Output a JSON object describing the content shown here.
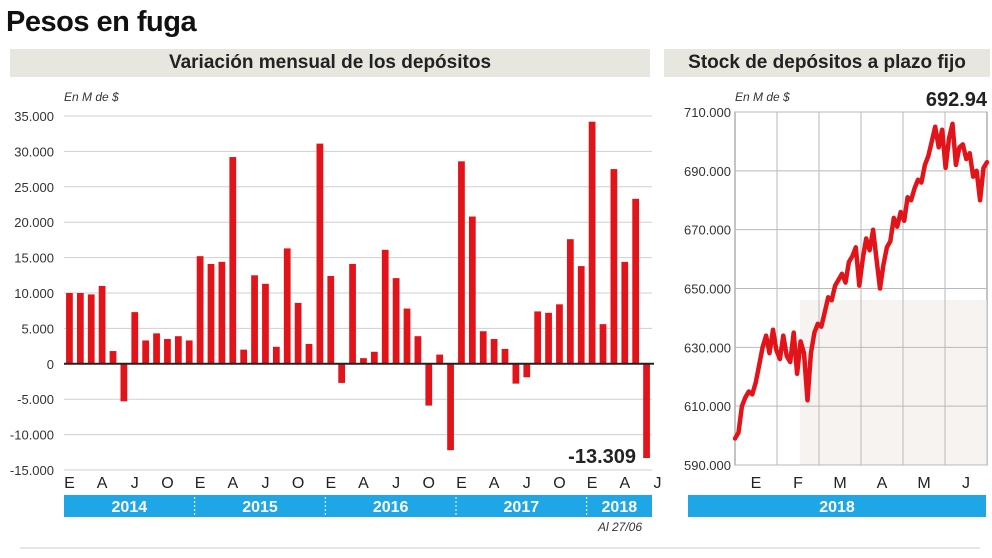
{
  "title": "Pesos en fuga",
  "colors": {
    "bar": "#e2141a",
    "year_band": "#1ea6e6",
    "head_bg": "#e7e6df"
  },
  "chart_data": [
    {
      "type": "bar",
      "title": "Variación mensual de los depósitos",
      "unit": "En M de $",
      "ylim": [
        -15000,
        35000
      ],
      "y_ticks": [
        "35.000",
        "30.000",
        "25.000",
        "20.000",
        "15.000",
        "10.000",
        "5.000",
        "0",
        "-5.000",
        "-10.000",
        "-15.000"
      ],
      "month_labels": [
        "E",
        "A",
        "J",
        "O",
        "E",
        "A",
        "J",
        "O",
        "E",
        "A",
        "J",
        "O",
        "E",
        "A",
        "J",
        "O",
        "E",
        "A",
        "J"
      ],
      "year_labels": [
        "2014",
        "2015",
        "2016",
        "2017",
        "2018"
      ],
      "values": [
        10000,
        10000,
        9800,
        11000,
        1800,
        -5300,
        7300,
        3300,
        4300,
        3500,
        3900,
        3300,
        15200,
        14100,
        14400,
        29200,
        2000,
        12500,
        11300,
        2400,
        16300,
        8600,
        2800,
        31100,
        12400,
        -2700,
        14100,
        800,
        1700,
        16100,
        12100,
        7800,
        3900,
        -5900,
        1300,
        -12200,
        28600,
        20800,
        4600,
        3500,
        2100,
        -2800,
        -1900,
        7400,
        7200,
        8400,
        17600,
        13800,
        34200,
        5600,
        27500,
        14400,
        23300,
        -13309
      ],
      "annotation": "-13.309",
      "note": "Al 27/06"
    },
    {
      "type": "line",
      "title": "Stock de depósitos a plazo fijo",
      "unit": "En M de $",
      "ylim": [
        590000,
        710000
      ],
      "y_ticks": [
        "710.000",
        "690.000",
        "670.000",
        "650.000",
        "630.000",
        "610.000",
        "590.000"
      ],
      "month_labels": [
        "E",
        "F",
        "M",
        "A",
        "M",
        "J"
      ],
      "year_labels": [
        "2018"
      ],
      "last_value_label": "692.94",
      "series": [
        {
          "values": [
            599000,
            601000,
            610000,
            613000,
            615000,
            614000,
            618000,
            624000,
            630000,
            634000,
            628000,
            636000,
            629000,
            626000,
            634000,
            627000,
            625000,
            635000,
            621000,
            632000,
            628000,
            612000,
            628000,
            635000,
            638000,
            637000,
            642000,
            647000,
            646000,
            651000,
            653000,
            655000,
            652000,
            659000,
            661000,
            664000,
            651000,
            660000,
            667000,
            663000,
            670000,
            660000,
            650000,
            658000,
            664000,
            666000,
            674000,
            671000,
            676000,
            673000,
            681000,
            680000,
            684000,
            687000,
            686000,
            692000,
            695000,
            700000,
            705000,
            698000,
            704000,
            691000,
            701000,
            706000,
            692000,
            698000,
            699000,
            694000,
            696000,
            688000,
            690000,
            680000,
            691000,
            692940
          ]
        }
      ]
    }
  ]
}
